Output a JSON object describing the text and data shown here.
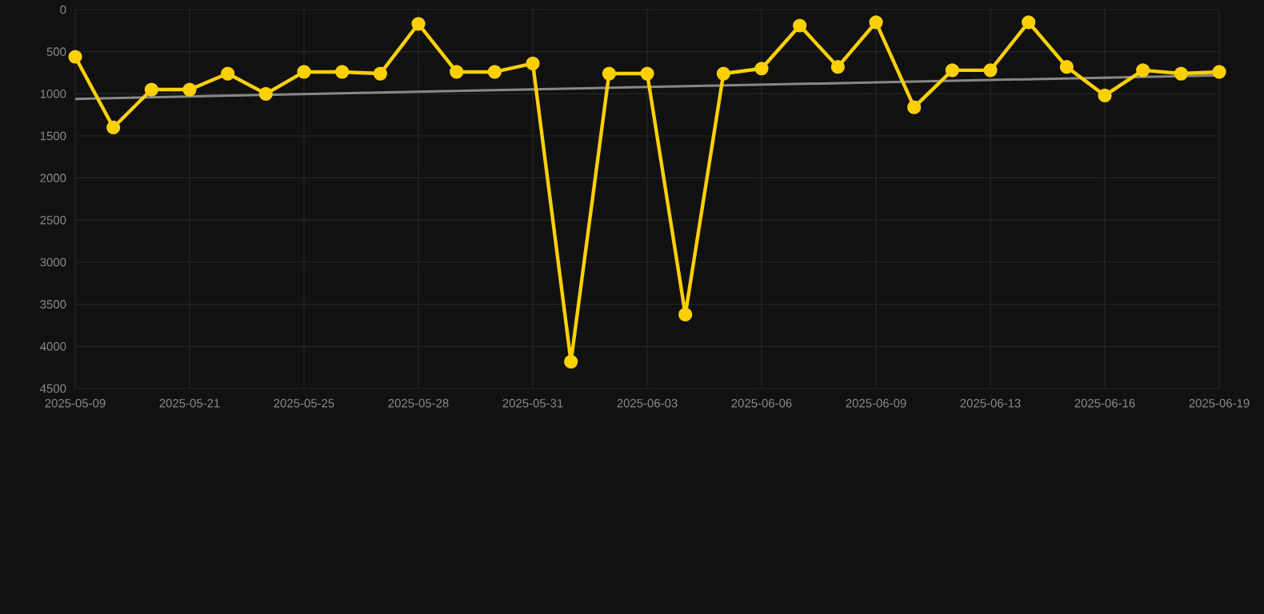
{
  "chart_data": {
    "type": "line",
    "categories": [
      "2025-05-09",
      null,
      null,
      "2025-05-21",
      null,
      null,
      "2025-05-25",
      null,
      null,
      "2025-05-28",
      null,
      null,
      "2025-05-31",
      null,
      null,
      "2025-06-03",
      null,
      null,
      "2025-06-06",
      null,
      null,
      "2025-06-09",
      null,
      null,
      "2025-06-13",
      null,
      null,
      "2025-06-16",
      null,
      null,
      "2025-06-19"
    ],
    "ylim": [
      4500,
      0
    ],
    "yticks": [
      0,
      500,
      1000,
      1500,
      2000,
      2500,
      3000,
      3500,
      4000,
      4500
    ],
    "grid": true,
    "series": [
      {
        "color": "#ffd000",
        "marker": "circle",
        "values": [
          560,
          1400,
          950,
          950,
          760,
          1000,
          740,
          740,
          760,
          170,
          740,
          740,
          640,
          4180,
          760,
          760,
          3620,
          760,
          700,
          190,
          680,
          150,
          1160,
          720,
          720,
          150,
          680,
          1020,
          720,
          760,
          740
        ]
      },
      {
        "type": "line",
        "color": "#888888",
        "marker": "none",
        "values": [
          1060,
          null,
          null,
          null,
          null,
          null,
          null,
          null,
          null,
          null,
          null,
          null,
          null,
          null,
          null,
          null,
          null,
          null,
          null,
          null,
          null,
          null,
          null,
          null,
          null,
          null,
          null,
          null,
          null,
          null,
          780
        ]
      }
    ]
  }
}
